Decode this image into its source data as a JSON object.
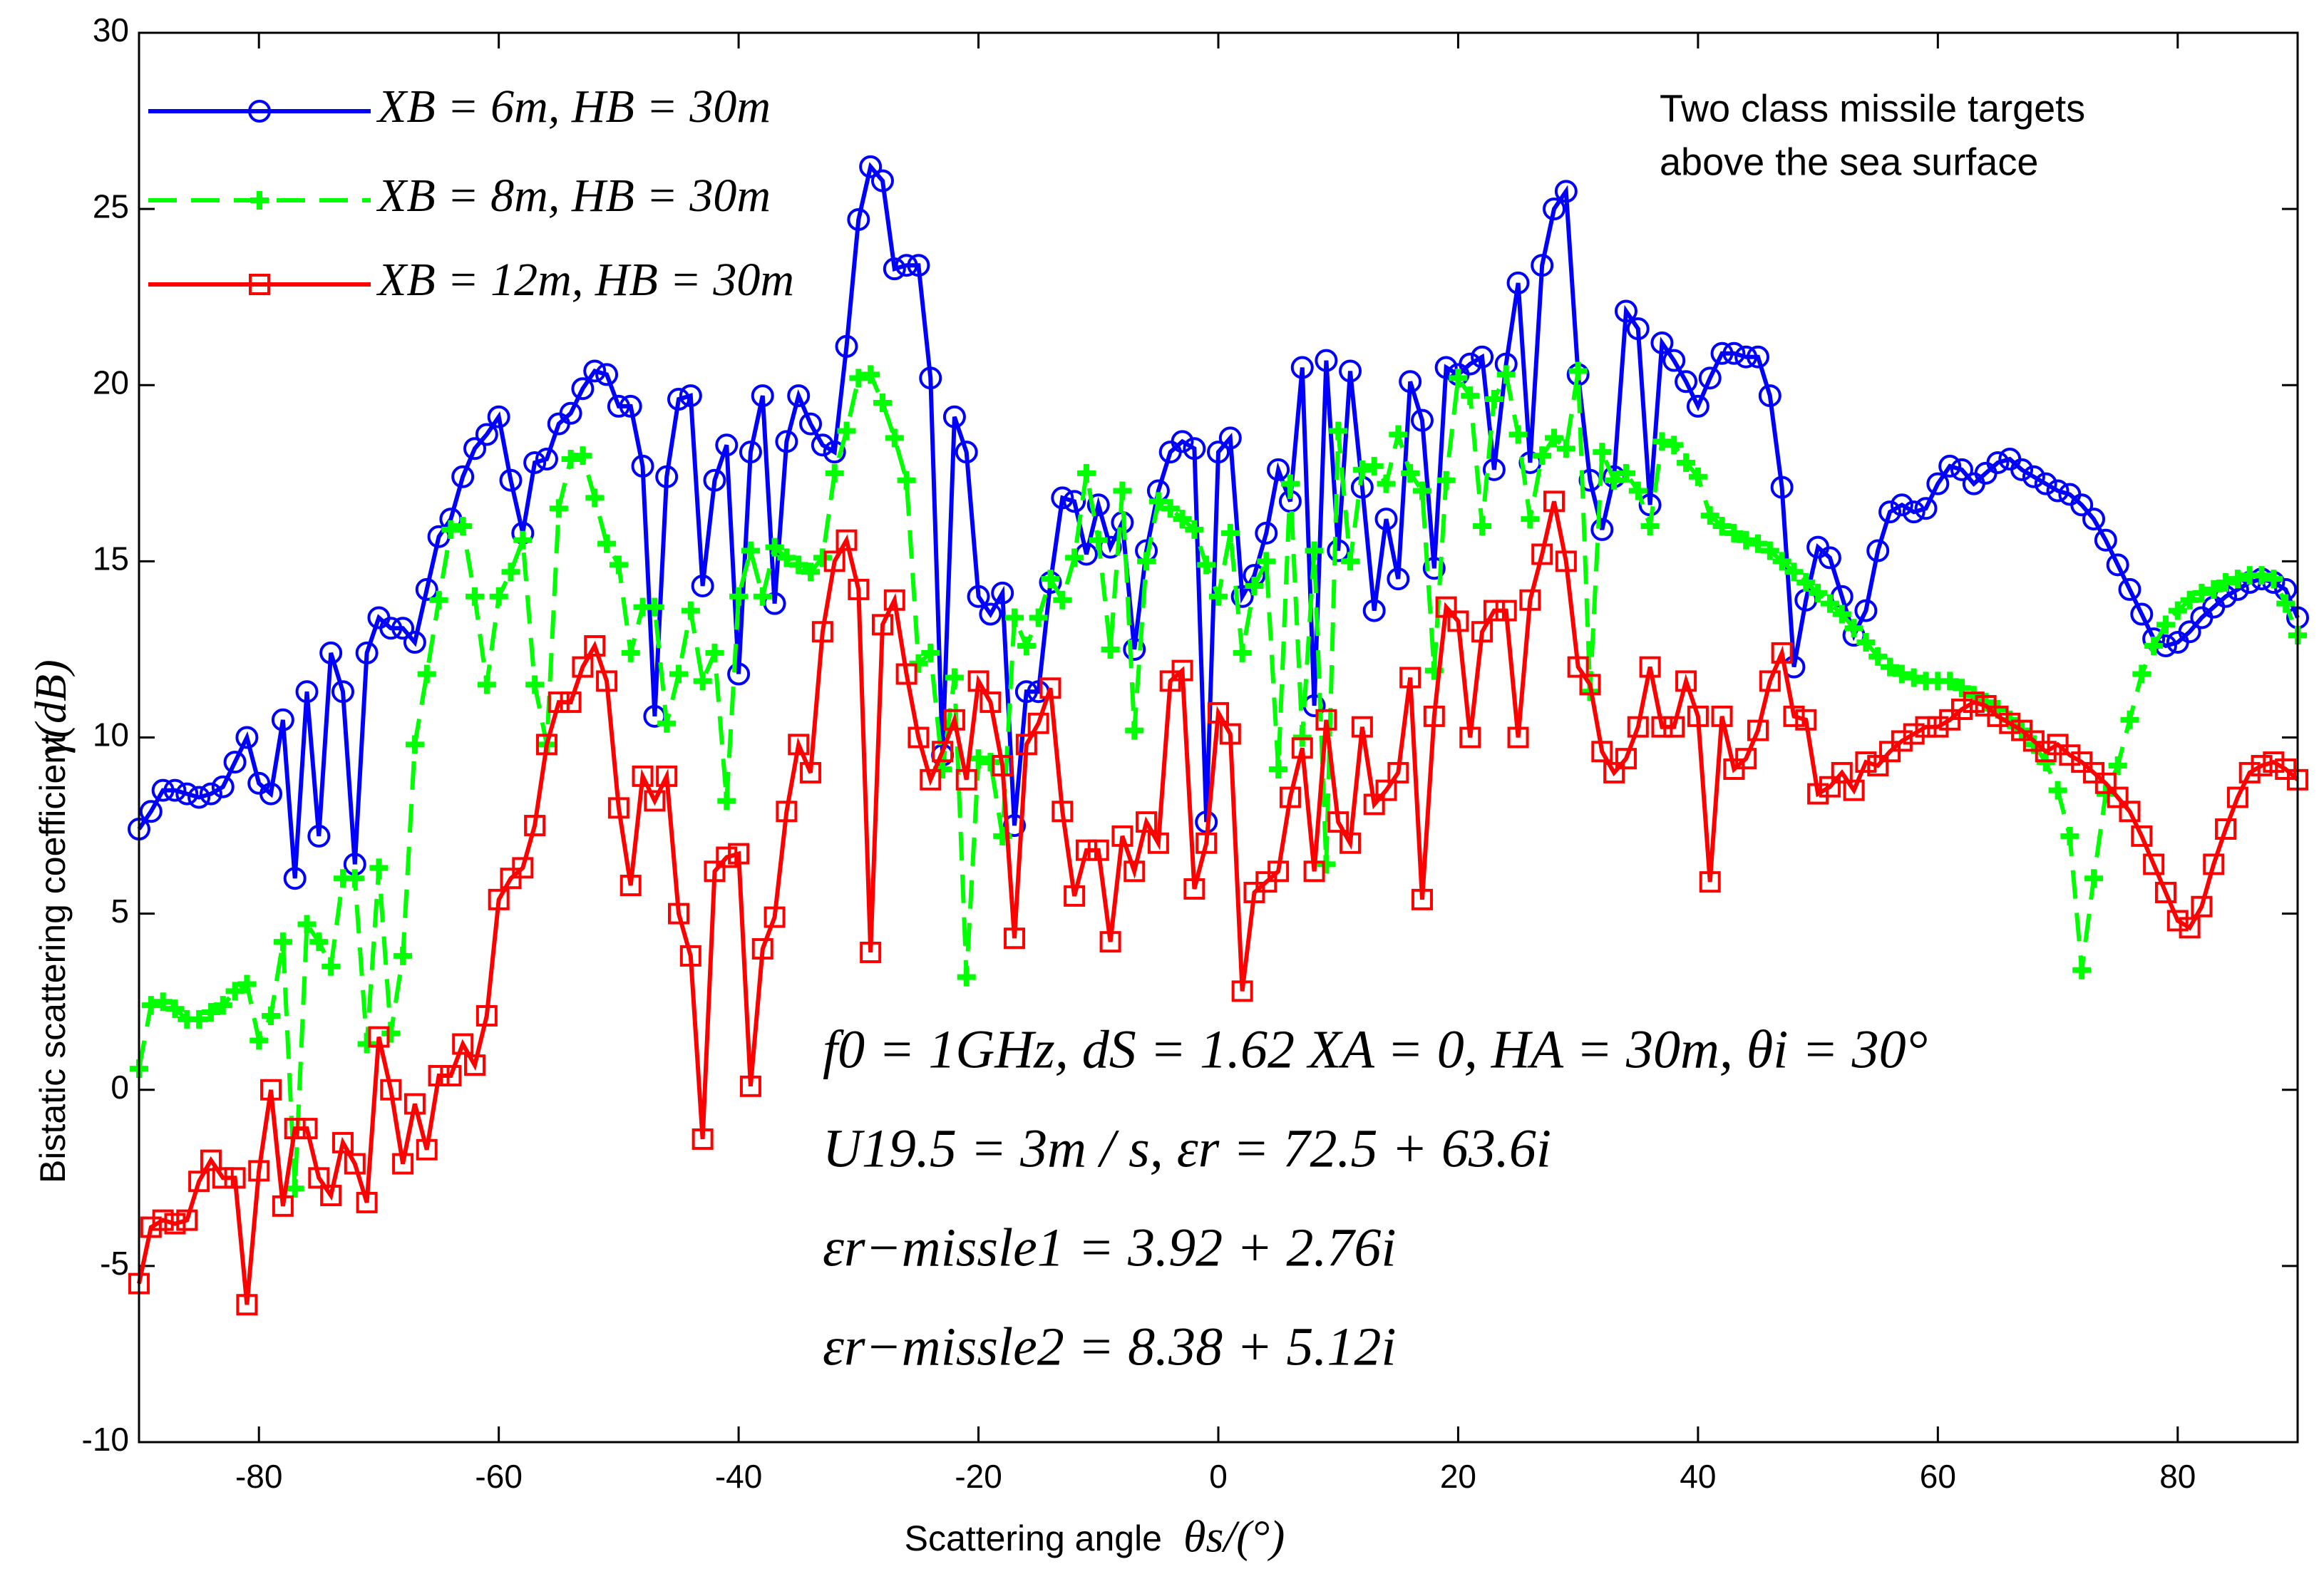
{
  "chart_data": {
    "type": "line",
    "x_label": "Scattering angle",
    "x_label_unit": "θs/(°)",
    "y_label": "Bistatic scattering coefficient",
    "y_label_unit": "γ(dB)",
    "annotations": [
      "Two class missile targets",
      "above the sea surface"
    ],
    "equations": [
      "f0 = 1GHz, dS = 1.62   XA = 0, HA = 30m, θi = 30°",
      "U19.5 = 3m / s, εr = 72.5 + 63.6i",
      "εr−missle1 = 3.92 + 2.76i",
      "εr−missle2 = 8.38 + 5.12i"
    ],
    "xlim": [
      -90,
      90
    ],
    "ylim": [
      -10,
      30
    ],
    "xticks": [
      -80,
      -60,
      -40,
      -20,
      0,
      20,
      40,
      60,
      80
    ],
    "yticks": [
      -10,
      -5,
      0,
      5,
      10,
      15,
      20,
      25,
      30
    ],
    "x": [
      -90,
      -89,
      -88,
      -87,
      -86,
      -85,
      -84,
      -83,
      -82,
      -81,
      -80,
      -79,
      -78,
      -77,
      -76,
      -75,
      -74,
      -73,
      -72,
      -71,
      -70,
      -69,
      -68,
      -67,
      -66,
      -65,
      -64,
      -63,
      -62,
      -61,
      -60,
      -59,
      -58,
      -57,
      -56,
      -55,
      -54,
      -53,
      -52,
      -51,
      -50,
      -49,
      -48,
      -47,
      -46,
      -45,
      -44,
      -43,
      -42,
      -41,
      -40,
      -39,
      -38,
      -37,
      -36,
      -35,
      -34,
      -33,
      -32,
      -31,
      -30,
      -29,
      -28,
      -27,
      -26,
      -25,
      -24,
      -23,
      -22,
      -21,
      -20,
      -19,
      -18,
      -17,
      -16,
      -15,
      -14,
      -13,
      -12,
      -11,
      -10,
      -9,
      -8,
      -7,
      -6,
      -5,
      -4,
      -3,
      -2,
      -1,
      0,
      1,
      2,
      3,
      4,
      5,
      6,
      7,
      8,
      9,
      10,
      11,
      12,
      13,
      14,
      15,
      16,
      17,
      18,
      19,
      20,
      21,
      22,
      23,
      24,
      25,
      26,
      27,
      28,
      29,
      30,
      31,
      32,
      33,
      34,
      35,
      36,
      37,
      38,
      39,
      40,
      41,
      42,
      43,
      44,
      45,
      46,
      47,
      48,
      49,
      50,
      51,
      52,
      53,
      54,
      55,
      56,
      57,
      58,
      59,
      60,
      61,
      62,
      63,
      64,
      65,
      66,
      67,
      68,
      69,
      70,
      71,
      72,
      73,
      74,
      75,
      76,
      77,
      78,
      79,
      80,
      81,
      82,
      83,
      84,
      85,
      86,
      87,
      88,
      89,
      90
    ],
    "series": [
      {
        "name": "XB = 6m, HB = 30m",
        "color": "#0000ff",
        "marker": "circle",
        "dashed": false,
        "values": [
          7.4,
          7.9,
          8.5,
          8.5,
          8.4,
          8.3,
          8.4,
          8.6,
          9.3,
          10.0,
          8.7,
          8.4,
          10.5,
          6.0,
          11.3,
          7.2,
          12.4,
          11.3,
          6.4,
          12.4,
          13.4,
          13.1,
          13.1,
          12.7,
          14.2,
          15.7,
          16.2,
          17.4,
          18.2,
          18.6,
          19.1,
          17.3,
          15.8,
          17.8,
          17.9,
          18.9,
          19.2,
          19.9,
          20.4,
          20.3,
          19.4,
          19.4,
          17.7,
          10.6,
          17.4,
          19.6,
          19.7,
          14.3,
          17.3,
          18.3,
          11.8,
          18.1,
          19.7,
          13.8,
          18.4,
          19.7,
          18.9,
          18.3,
          18.1,
          21.1,
          24.7,
          26.2,
          25.8,
          23.3,
          23.4,
          23.4,
          20.2,
          9.5,
          19.1,
          18.1,
          14.0,
          13.5,
          14.1,
          7.5,
          11.3,
          11.3,
          14.4,
          16.8,
          16.7,
          15.2,
          16.6,
          15.4,
          16.1,
          12.5,
          15.3,
          17.0,
          18.1,
          18.4,
          18.2,
          7.6,
          18.1,
          18.5,
          14.0,
          14.6,
          15.8,
          17.6,
          16.7,
          20.5,
          10.9,
          20.7,
          15.3,
          20.4,
          17.1,
          13.6,
          16.2,
          14.5,
          20.1,
          19.0,
          14.8,
          20.5,
          20.3,
          20.6,
          20.8,
          17.6,
          20.6,
          22.9,
          17.8,
          23.4,
          25.0,
          25.5,
          20.3,
          17.3,
          15.9,
          17.4,
          22.1,
          21.6,
          16.6,
          21.2,
          20.7,
          20.1,
          19.4,
          20.2,
          20.9,
          20.9,
          20.8,
          20.8,
          19.7,
          17.1,
          12.0,
          13.9,
          15.4,
          15.1,
          14.0,
          12.9,
          13.6,
          15.3,
          16.4,
          16.6,
          16.4,
          16.5,
          17.2,
          17.7,
          17.6,
          17.2,
          17.5,
          17.8,
          17.9,
          17.6,
          17.4,
          17.2,
          17.0,
          16.9,
          16.6,
          16.2,
          15.6,
          14.9,
          14.2,
          13.5,
          12.8,
          12.6,
          12.7,
          13.0,
          13.4,
          13.7,
          14.0,
          14.2,
          14.4,
          14.5,
          14.4,
          14.2,
          13.4
        ]
      },
      {
        "name": "XB = 8m, HB = 30m",
        "color": "#00ff00",
        "marker": "plus",
        "dashed": true,
        "values": [
          0.6,
          2.4,
          2.5,
          2.3,
          2.0,
          2.0,
          2.2,
          2.4,
          2.8,
          3.0,
          1.4,
          2.1,
          4.2,
          -2.8,
          4.7,
          4.2,
          3.5,
          6.0,
          6.0,
          1.3,
          6.3,
          1.6,
          3.8,
          9.8,
          11.8,
          13.9,
          15.9,
          16.0,
          14.0,
          11.5,
          14.0,
          14.7,
          15.6,
          11.5,
          9.8,
          16.5,
          17.9,
          18.0,
          16.8,
          15.5,
          14.9,
          12.4,
          13.7,
          13.7,
          10.4,
          11.8,
          13.6,
          11.6,
          12.4,
          8.2,
          14.0,
          15.3,
          14.0,
          15.4,
          15.1,
          14.9,
          14.7,
          15.1,
          17.5,
          18.7,
          20.2,
          20.3,
          19.5,
          18.5,
          17.3,
          12.1,
          12.4,
          9.1,
          11.7,
          3.2,
          9.4,
          9.3,
          7.2,
          13.4,
          12.6,
          13.4,
          14.5,
          13.9,
          15.1,
          17.5,
          15.6,
          12.5,
          17.0,
          10.2,
          15.0,
          16.7,
          16.5,
          16.2,
          15.9,
          14.9,
          14.0,
          15.8,
          12.4,
          14.3,
          15.0,
          9.1,
          17.2,
          10.0,
          15.3,
          6.4,
          18.7,
          15.0,
          17.6,
          17.7,
          17.2,
          18.6,
          17.5,
          17.0,
          11.9,
          17.3,
          20.2,
          19.7,
          16.0,
          19.6,
          20.3,
          18.6,
          16.2,
          18.0,
          18.5,
          18.2,
          20.4,
          11.3,
          18.1,
          17.3,
          17.5,
          17.0,
          16.0,
          18.4,
          18.3,
          17.8,
          17.4,
          16.3,
          16.0,
          15.8,
          15.6,
          15.5,
          15.3,
          15.0,
          14.7,
          14.4,
          14.1,
          13.8,
          13.5,
          13.1,
          12.7,
          12.3,
          12.0,
          11.8,
          11.7,
          11.6,
          11.6,
          11.6,
          11.4,
          11.2,
          11.0,
          10.8,
          10.5,
          10.2,
          9.8,
          9.3,
          8.5,
          7.2,
          3.4,
          6.0,
          8.4,
          9.2,
          10.5,
          11.8,
          12.6,
          13.2,
          13.6,
          13.9,
          14.1,
          14.2,
          14.4,
          14.5,
          14.6,
          14.6,
          14.5,
          13.8,
          12.9
        ]
      },
      {
        "name": "XB = 12m, HB = 30m",
        "color": "#ff0000",
        "marker": "square",
        "dashed": false,
        "values": [
          -5.5,
          -3.9,
          -3.7,
          -3.8,
          -3.7,
          -2.6,
          -2.0,
          -2.5,
          -2.5,
          -6.1,
          -2.3,
          0.0,
          -3.3,
          -1.1,
          -1.1,
          -2.5,
          -3.0,
          -1.5,
          -2.1,
          -3.2,
          1.5,
          0.0,
          -2.1,
          -0.4,
          -1.7,
          0.4,
          0.4,
          1.3,
          0.7,
          2.1,
          5.4,
          6.0,
          6.3,
          7.5,
          9.8,
          11.0,
          11.0,
          12.0,
          12.6,
          11.6,
          8.0,
          5.8,
          8.9,
          8.2,
          8.9,
          5.0,
          3.8,
          -1.4,
          6.2,
          6.6,
          6.7,
          0.1,
          4.0,
          4.9,
          7.9,
          9.8,
          9.0,
          13.0,
          15.0,
          15.6,
          14.2,
          3.9,
          13.2,
          13.9,
          11.8,
          10.0,
          8.8,
          9.6,
          10.5,
          8.8,
          11.6,
          11.0,
          9.2,
          4.3,
          9.8,
          10.4,
          11.4,
          7.9,
          5.5,
          6.8,
          6.8,
          4.2,
          7.2,
          6.2,
          7.6,
          7.0,
          11.6,
          11.9,
          5.7,
          7.0,
          10.7,
          10.1,
          2.8,
          5.6,
          5.9,
          6.2,
          8.3,
          9.7,
          6.2,
          10.5,
          7.6,
          7.0,
          10.3,
          8.1,
          8.5,
          9.0,
          11.7,
          5.4,
          10.6,
          13.7,
          13.3,
          10.0,
          13.0,
          13.6,
          13.6,
          10.0,
          13.9,
          15.2,
          16.7,
          15.0,
          12.0,
          11.5,
          9.6,
          9.0,
          9.4,
          10.3,
          12.0,
          10.3,
          10.3,
          11.6,
          10.6,
          5.9,
          10.6,
          9.1,
          9.4,
          10.2,
          11.6,
          12.4,
          10.6,
          10.5,
          8.4,
          8.6,
          9.0,
          8.5,
          9.3,
          9.2,
          9.6,
          9.9,
          10.1,
          10.3,
          10.3,
          10.5,
          10.8,
          11.0,
          10.9,
          10.6,
          10.4,
          10.2,
          9.9,
          9.6,
          9.8,
          9.5,
          9.3,
          9.0,
          8.7,
          8.3,
          7.9,
          7.2,
          6.4,
          5.6,
          4.8,
          4.6,
          5.2,
          6.4,
          7.4,
          8.3,
          9.0,
          9.2,
          9.3,
          9.1,
          8.8
        ]
      }
    ]
  }
}
